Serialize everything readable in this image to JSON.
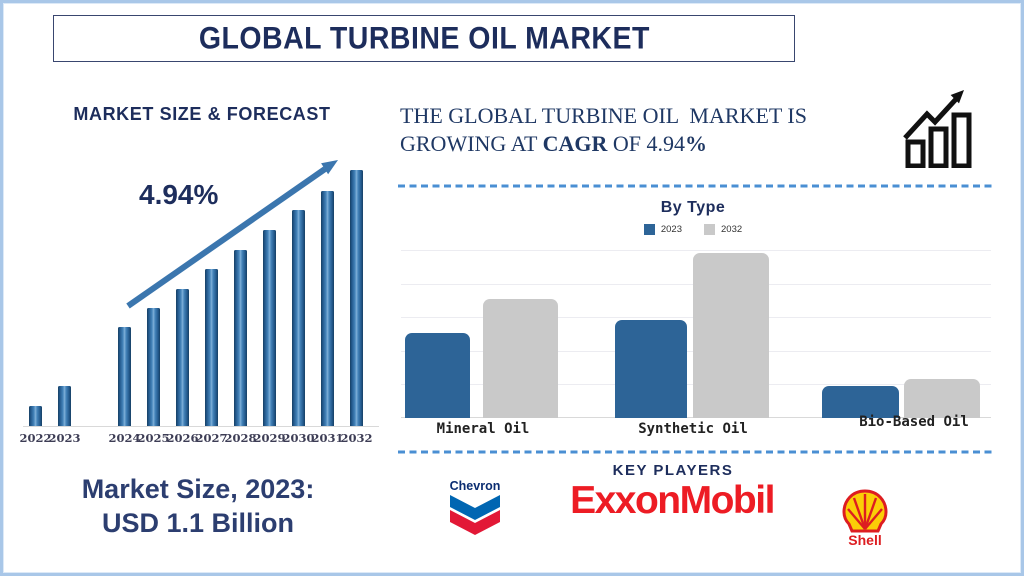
{
  "title": "GLOBAL TURBINE OIL MARKET",
  "left_panel": {
    "heading": "MARKET SIZE & FORECAST",
    "cagr_label": "4.94%",
    "market_size_line1": "Market Size, 2023:",
    "market_size_line2": "USD 1.1 Billion"
  },
  "right_panel": {
    "headline_line1": "THE GLOBAL TURBINE OIL  MARKET IS",
    "headline_line2_pre": "GROWING AT ",
    "headline_line2_bold1": "CAGR",
    "headline_line2_mid": " OF 4.94",
    "headline_line2_bold2": "%",
    "growth_icon": "bar-chart-rising-arrow-icon"
  },
  "key_players": {
    "heading": "KEY PLAYERS",
    "companies": [
      {
        "name": "Chevron"
      },
      {
        "name": "ExxonMobil"
      },
      {
        "name": "Shell"
      }
    ]
  },
  "chart_data": [
    {
      "id": "market_size_forecast",
      "type": "bar",
      "title": "MARKET SIZE & FORECAST",
      "x": [
        "2022",
        "2023",
        "2024",
        "2025",
        "2026",
        "2027",
        "2028",
        "2029",
        "2030",
        "2031",
        "2032"
      ],
      "bar_heights_relative": [
        20,
        40,
        99,
        118,
        137,
        157,
        176,
        196,
        216,
        235,
        256
      ],
      "annotation": "4.94%",
      "known_values": {
        "2023": "USD 1.1 Billion"
      },
      "cagr_pct": 4.94,
      "axis_labels_shown": false,
      "grid": false,
      "trend_arrow": "up"
    },
    {
      "id": "by_type",
      "type": "bar",
      "title": "By Type",
      "categories": [
        "Mineral Oil",
        "Synthetic Oil",
        "Bio-Based Oil"
      ],
      "series": [
        {
          "name": "2023",
          "color": "#2d6497",
          "heights_relative": [
            85,
            98,
            32
          ]
        },
        {
          "name": "2032",
          "color": "#c9c9c9",
          "heights_relative": [
            119,
            165,
            39
          ]
        }
      ],
      "plot_height_relative": 168,
      "grid": true,
      "gridline_count": 6,
      "legend_position": "top",
      "axis_labels_shown": false
    }
  ],
  "colors": {
    "navy_text": "#1d2d5c",
    "serif_text": "#1f3864",
    "steel_arrow": "#3b76ae",
    "bar_blue_2023": "#2d6497",
    "bar_gray_2032": "#c9c9c9",
    "dashed_divider": "#4a8fd3",
    "frame_border": "#a9c7e8",
    "chevron_blue": "#0066b2",
    "chevron_red": "#e21836",
    "exxon_red": "#ed1c24",
    "shell_yellow": "#fbce07",
    "shell_red": "#dd1d21"
  }
}
